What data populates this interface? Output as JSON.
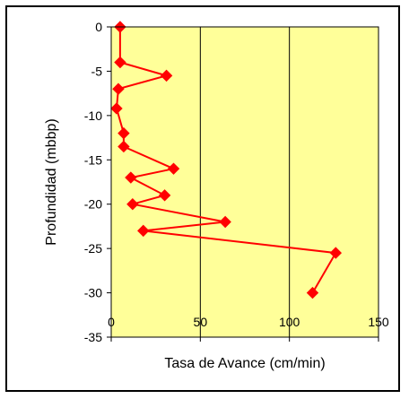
{
  "chart_data": {
    "type": "line",
    "title": "",
    "xlabel": "Tasa de Avance  (cm/min)",
    "ylabel": "Profundidad (mbbp)",
    "xlim": [
      0,
      150
    ],
    "ylim": [
      -35,
      0
    ],
    "x_ticks": [
      "0",
      "50",
      "100",
      "150"
    ],
    "y_ticks": [
      "0",
      "-5",
      "-10",
      "-15",
      "-20",
      "-25",
      "-30",
      "-35"
    ],
    "grid": true,
    "legend": "none",
    "colors": {
      "plot_background": "#ffff99",
      "series": "#ff0000",
      "grid": "#000000"
    },
    "series": [
      {
        "x": [
          5,
          5,
          31,
          4,
          3,
          7,
          7,
          35,
          11,
          30,
          12,
          64,
          18,
          126,
          113
        ],
        "y": [
          0,
          -4,
          -5.5,
          -7,
          -9.2,
          -12,
          -13.5,
          -16,
          -17,
          -19,
          -20,
          -22,
          -23,
          -25.5,
          -30
        ]
      }
    ]
  }
}
